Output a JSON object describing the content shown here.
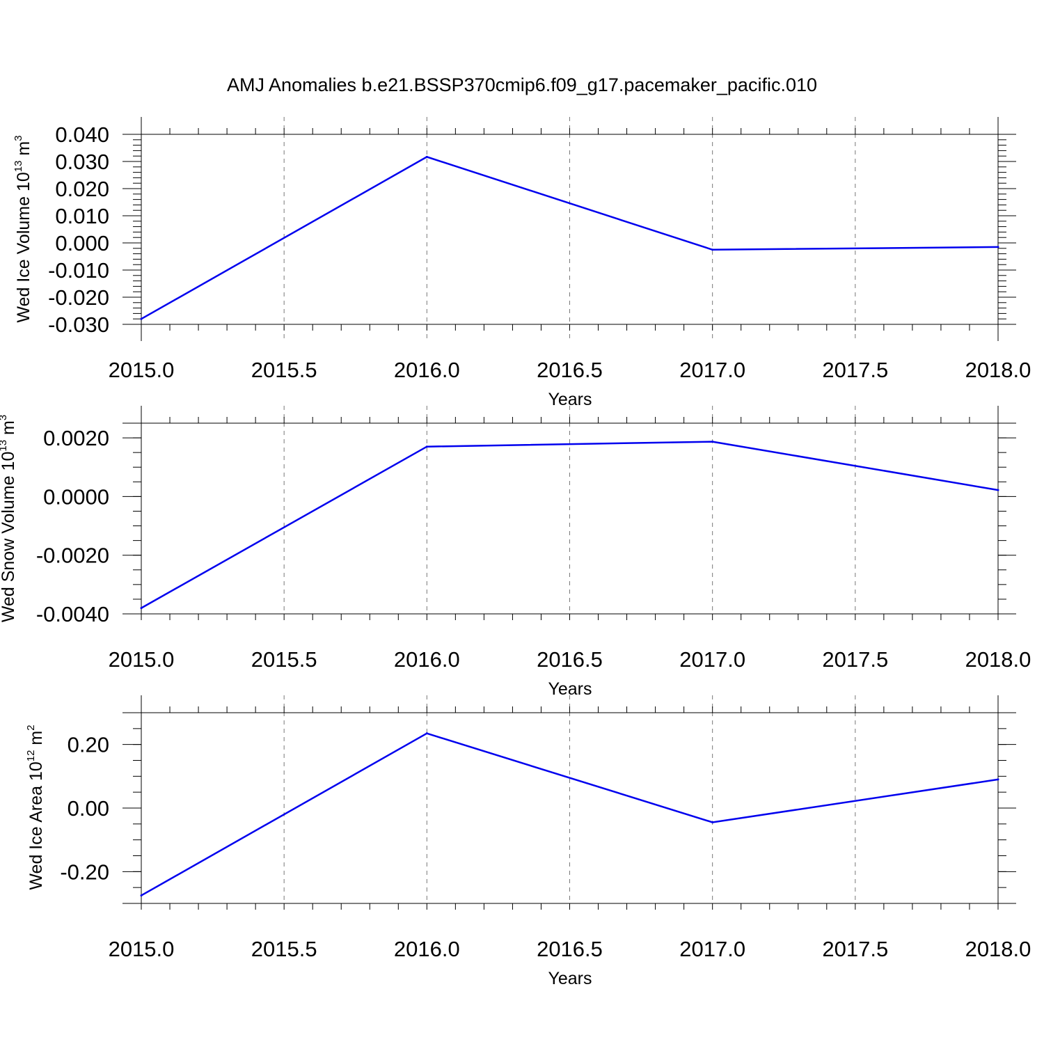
{
  "title": "AMJ Anomalies b.e21.BSSP370cmip6.f09_g17.pacemaker_pacific.010",
  "line_color": "#0000ee",
  "chart_data": [
    {
      "type": "line",
      "ylabel_base": "Wed Ice Volume 10",
      "ylabel_exp": "13",
      "ylabel_unit": " m",
      "ylabel_unit_exp": "3",
      "xlabel": "Years",
      "x": [
        2015,
        2016,
        2017,
        2018
      ],
      "values": [
        -0.028,
        0.0317,
        -0.0025,
        -0.0015
      ],
      "xlim": [
        2015,
        2018
      ],
      "ylim": [
        -0.03,
        0.04
      ],
      "yticks": [
        -0.03,
        -0.02,
        -0.01,
        0.0,
        0.01,
        0.02,
        0.03,
        0.04
      ],
      "ytick_labels": [
        "-0.030",
        "-0.020",
        "-0.010",
        "0.000",
        "0.010",
        "0.020",
        "0.030",
        "0.040"
      ],
      "yminor_step": 0.002,
      "xticks": [
        2015.0,
        2015.5,
        2016.0,
        2016.5,
        2017.0,
        2017.5,
        2018.0
      ],
      "xtick_labels": [
        "2015.0",
        "2015.5",
        "2016.0",
        "2016.5",
        "2017.0",
        "2017.5",
        "2018.0"
      ],
      "grid": "vertical-dashed"
    },
    {
      "type": "line",
      "ylabel_base": "Wed Snow Volume 10",
      "ylabel_exp": "13",
      "ylabel_unit": " m",
      "ylabel_unit_exp": "3",
      "xlabel": "Years",
      "x": [
        2015,
        2016,
        2017,
        2018
      ],
      "values": [
        -0.0038,
        0.0017,
        0.00187,
        0.00022
      ],
      "xlim": [
        2015,
        2018
      ],
      "ylim": [
        -0.004,
        0.0025
      ],
      "yticks": [
        -0.004,
        -0.002,
        0.0,
        0.002
      ],
      "ytick_labels": [
        "-0.0040",
        "-0.0020",
        "0.0000",
        "0.0020"
      ],
      "yminor_step": 0.0005,
      "xticks": [
        2015.0,
        2015.5,
        2016.0,
        2016.5,
        2017.0,
        2017.5,
        2018.0
      ],
      "xtick_labels": [
        "2015.0",
        "2015.5",
        "2016.0",
        "2016.5",
        "2017.0",
        "2017.5",
        "2018.0"
      ],
      "grid": "vertical-dashed"
    },
    {
      "type": "line",
      "ylabel_base": "Wed Ice Area 10",
      "ylabel_exp": "12",
      "ylabel_unit": " m",
      "ylabel_unit_exp": "2",
      "xlabel": "Years",
      "x": [
        2015,
        2016,
        2017,
        2018
      ],
      "values": [
        -0.275,
        0.235,
        -0.045,
        0.09
      ],
      "xlim": [
        2015,
        2018
      ],
      "ylim": [
        -0.3,
        0.3
      ],
      "yticks": [
        -0.2,
        0.0,
        0.2
      ],
      "ytick_labels": [
        "-0.20",
        "0.00",
        "0.20"
      ],
      "yminor_step": 0.05,
      "xticks": [
        2015.0,
        2015.5,
        2016.0,
        2016.5,
        2017.0,
        2017.5,
        2018.0
      ],
      "xtick_labels": [
        "2015.0",
        "2015.5",
        "2016.0",
        "2016.5",
        "2017.0",
        "2017.5",
        "2018.0"
      ],
      "grid": "vertical-dashed"
    }
  ]
}
